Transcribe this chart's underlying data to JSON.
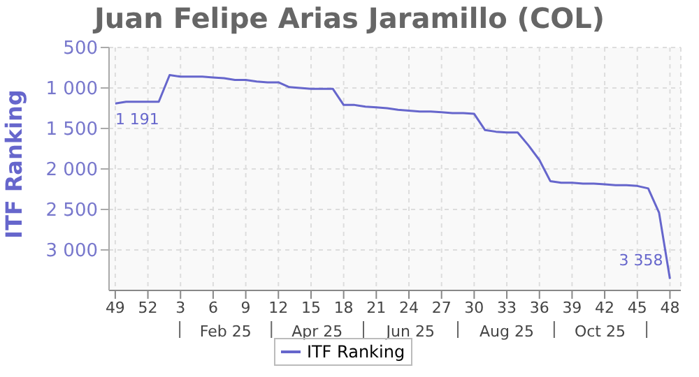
{
  "chart_data": {
    "type": "line",
    "title": "Juan Felipe Arias Jaramillo (COL)",
    "ylabel": "ITF Ranking",
    "x": [
      "2024-12-02",
      "2024-12-09",
      "2024-12-16",
      "2024-12-23",
      "2024-12-30",
      "2025-01-06",
      "2025-01-13",
      "2025-01-20",
      "2025-01-27",
      "2025-02-03",
      "2025-02-10",
      "2025-02-17",
      "2025-02-24",
      "2025-03-03",
      "2025-03-10",
      "2025-03-17",
      "2025-03-24",
      "2025-03-31",
      "2025-04-07",
      "2025-04-14",
      "2025-04-21",
      "2025-04-28",
      "2025-05-05",
      "2025-05-12",
      "2025-05-19",
      "2025-05-26",
      "2025-06-02",
      "2025-06-09",
      "2025-06-16",
      "2025-06-23",
      "2025-06-30",
      "2025-07-07",
      "2025-07-14",
      "2025-07-21",
      "2025-07-28",
      "2025-08-04",
      "2025-08-11",
      "2025-08-18",
      "2025-08-25",
      "2025-09-01",
      "2025-09-08",
      "2025-09-15",
      "2025-09-22",
      "2025-09-29",
      "2025-10-06",
      "2025-10-13",
      "2025-10-20",
      "2025-10-27",
      "2025-11-03",
      "2025-11-10",
      "2025-11-17",
      "2025-11-24"
    ],
    "series": [
      {
        "name": "ITF Ranking",
        "color": "#6666cc",
        "values": [
          1191,
          1170,
          1170,
          1170,
          1170,
          840,
          860,
          860,
          860,
          870,
          880,
          900,
          900,
          920,
          930,
          930,
          990,
          1000,
          1010,
          1010,
          1010,
          1210,
          1210,
          1230,
          1240,
          1250,
          1270,
          1280,
          1290,
          1290,
          1300,
          1310,
          1310,
          1320,
          1520,
          1540,
          1550,
          1550,
          1710,
          1890,
          2150,
          2170,
          2170,
          2180,
          2180,
          2190,
          2200,
          2200,
          2210,
          2240,
          2540,
          3358
        ],
        "value_labels": [
          "1 191",
          null,
          null,
          null,
          null,
          null,
          null,
          null,
          null,
          null,
          null,
          null,
          null,
          null,
          null,
          null,
          null,
          null,
          null,
          null,
          null,
          null,
          null,
          null,
          null,
          null,
          null,
          null,
          null,
          null,
          null,
          null,
          null,
          null,
          null,
          null,
          null,
          null,
          null,
          null,
          null,
          null,
          null,
          null,
          null,
          null,
          null,
          null,
          null,
          null,
          null,
          "3 358"
        ]
      }
    ],
    "xlim": [
      "2024-11-28",
      "2025-12-01"
    ],
    "xticks": [
      {
        "value": "2024-12-02",
        "label": "49"
      },
      {
        "value": "2024-12-23",
        "label": "52"
      },
      {
        "value": "2025-01-13",
        "label": "3"
      },
      {
        "value": "2025-02-03",
        "label": "6"
      },
      {
        "value": "2025-02-24",
        "label": "9"
      },
      {
        "value": "2025-03-17",
        "label": "12"
      },
      {
        "value": "2025-04-07",
        "label": "15"
      },
      {
        "value": "2025-04-28",
        "label": "18"
      },
      {
        "value": "2025-05-19",
        "label": "21"
      },
      {
        "value": "2025-06-09",
        "label": "24"
      },
      {
        "value": "2025-06-30",
        "label": "27"
      },
      {
        "value": "2025-07-21",
        "label": "30"
      },
      {
        "value": "2025-08-11",
        "label": "33"
      },
      {
        "value": "2025-09-01",
        "label": "36"
      },
      {
        "value": "2025-09-22",
        "label": "39"
      },
      {
        "value": "2025-10-13",
        "label": "42"
      },
      {
        "value": "2025-11-03",
        "label": "45"
      },
      {
        "value": "2025-11-24",
        "label": "48"
      }
    ],
    "x2lim": [
      "2024-11-28",
      "2025-12-01"
    ],
    "x2ticks": [
      {
        "value": "2025-02-11",
        "label": "Feb 25"
      },
      {
        "value": "2025-04-11",
        "label": "Apr 25"
      },
      {
        "value": "2025-06-10",
        "label": "Jun 25"
      },
      {
        "value": "2025-08-11",
        "label": "Aug 25"
      },
      {
        "value": "2025-10-10",
        "label": "Oct 25"
      }
    ],
    "ylim": [
      3500,
      500
    ],
    "yticks": [
      500,
      {
        "value": 1000,
        "label": "1 000"
      },
      {
        "value": 1500,
        "label": "1 500"
      },
      {
        "value": 2000,
        "label": "2 000"
      },
      {
        "value": 2500,
        "label": "2 500"
      },
      {
        "value": 3000,
        "label": "3 000"
      }
    ],
    "grid": true,
    "legend": "bottom",
    "marker": "none",
    "line_style": "solid"
  }
}
